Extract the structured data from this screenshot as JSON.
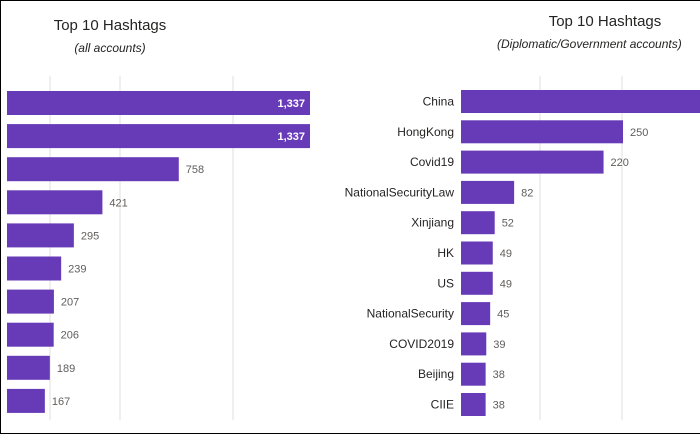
{
  "chart_data": [
    {
      "type": "bar",
      "orientation": "horizontal",
      "title": "Top 10 Hashtags",
      "subtitle": "(all accounts)",
      "categories": [
        "",
        "",
        "",
        "",
        "",
        "",
        "",
        "",
        "",
        ""
      ],
      "values": [
        1337,
        1337,
        758,
        421,
        295,
        239,
        207,
        206,
        189,
        167
      ],
      "value_labels": [
        "1,337",
        "1,337",
        "758",
        "421",
        "295",
        "239",
        "207",
        "206",
        "189",
        "167"
      ],
      "xlim": [
        0,
        1350
      ],
      "grid": true,
      "bar_color": "#673ab7"
    },
    {
      "type": "bar",
      "orientation": "horizontal",
      "title": "Top 10 Hashtags",
      "subtitle": "(Diplomatic/Government accounts)",
      "categories": [
        "China",
        "HongKong",
        "Covid19",
        "NationalSecurityLaw",
        "Xinjiang",
        "HK",
        "US",
        "NationalSecurity",
        "COVID2019",
        "Beijing",
        "CIIE"
      ],
      "values": [
        null,
        250,
        220,
        82,
        52,
        49,
        49,
        45,
        39,
        38,
        38
      ],
      "value_labels": [
        "",
        "250",
        "220",
        "82",
        "52",
        "49",
        "49",
        "45",
        "39",
        "38",
        "38"
      ],
      "xlim": [
        0,
        600
      ],
      "grid": true,
      "bar_color": "#673ab7"
    }
  ]
}
